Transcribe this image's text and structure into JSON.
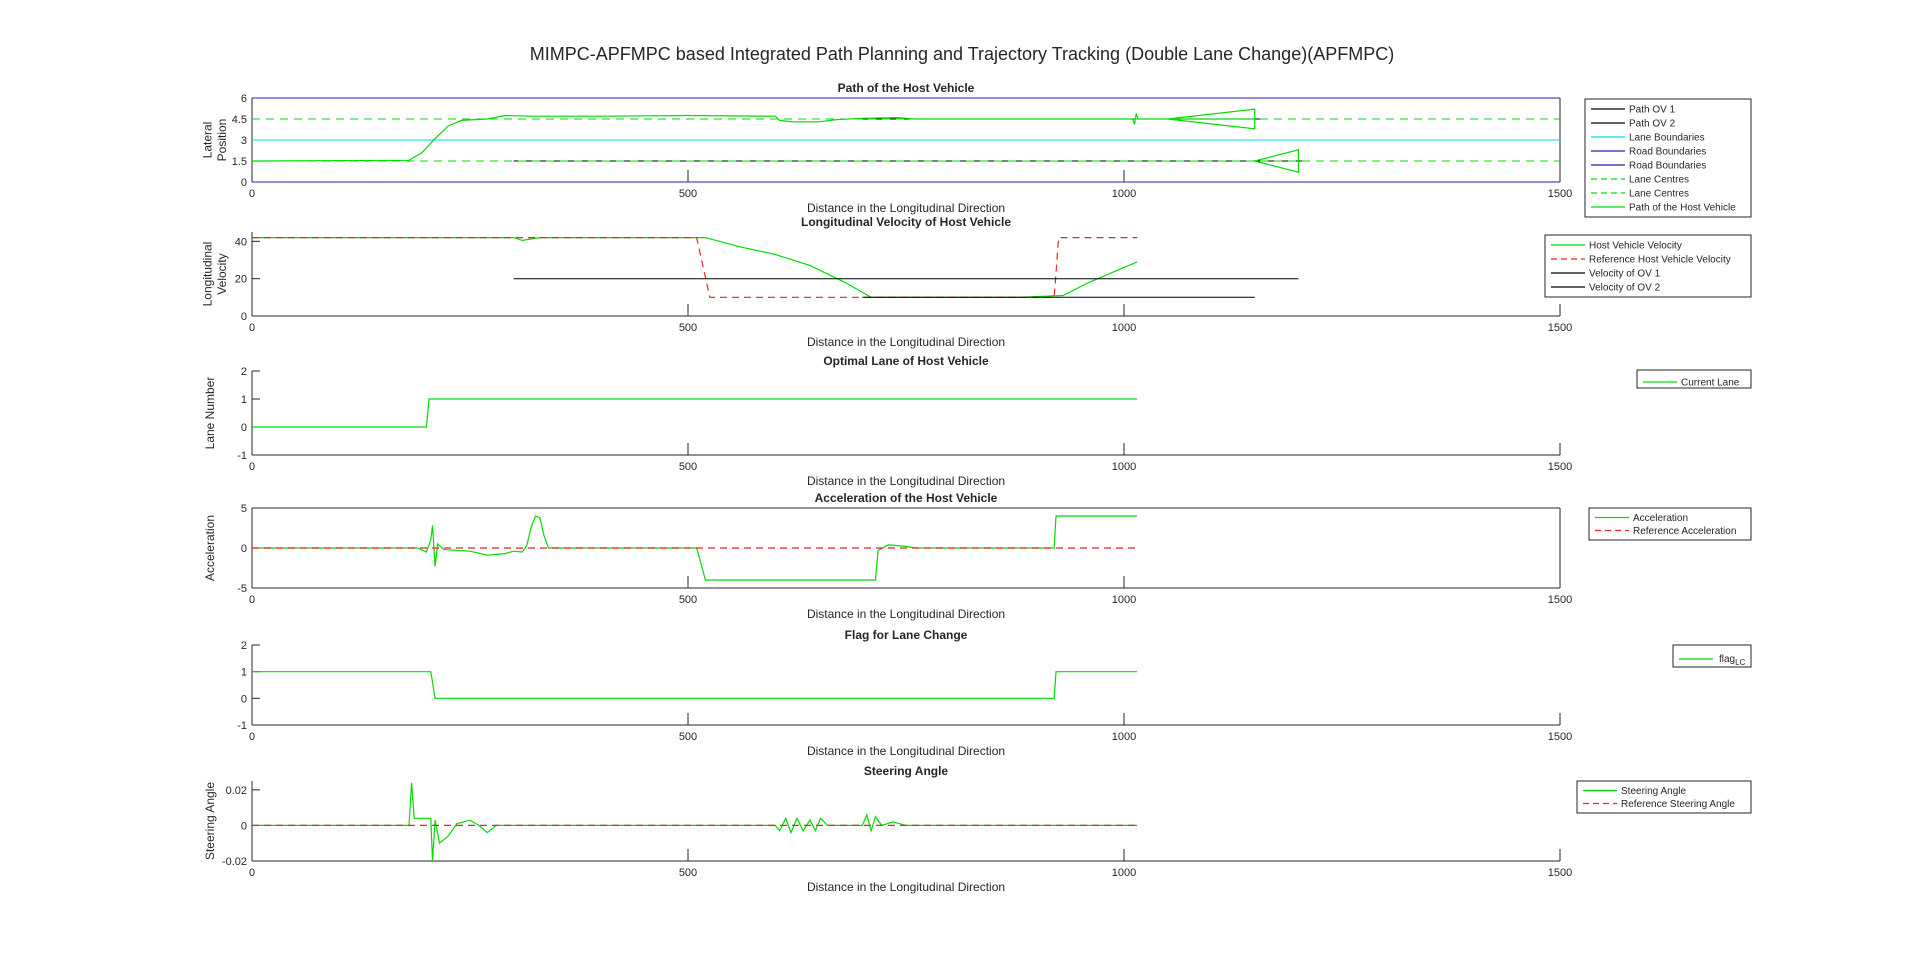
{
  "figure": {
    "title": "MIMPC-APFMPC based Integrated Path Planning and Trajectory Tracking (Double Lane Change)(APFMPC)"
  },
  "colors": {
    "host": "#00dd00",
    "reference": "#ee2222",
    "other_vehicle": "#000000",
    "lane_boundary": "#00dddd",
    "road_boundary": "#2222bb",
    "lane_centre": "#00dd00",
    "axis": "#262626"
  },
  "chart_data": [
    {
      "id": "path",
      "type": "line",
      "title": "Path of the Host Vehicle",
      "xlabel": "Distance in the Longitudinal Direction",
      "ylabel": "Lateral Position",
      "xlim": [
        0,
        1500
      ],
      "ylim": [
        0,
        6
      ],
      "xticks": [
        0,
        500,
        1000,
        1500
      ],
      "yticks": [
        0,
        1.5,
        3,
        4.5,
        6
      ],
      "ytick_labels": [
        "0",
        "1.5",
        "3",
        "4.5",
        "6"
      ],
      "legend_position": "right",
      "legend": [
        "Path OV 1",
        "Path OV 2",
        "Lane Boundaries",
        "Road Boundaries",
        "Road Boundaries",
        "Lane Centres",
        "Lane Centres",
        "Path of the Host Vehicle"
      ],
      "series": [
        {
          "name": "Path OV 1",
          "style": "ov",
          "points": [
            [
              700,
              4.5
            ],
            [
              1160,
              4.5
            ]
          ]
        },
        {
          "name": "Path OV 2",
          "style": "ov",
          "points": [
            [
              300,
              1.5
            ],
            [
              1210,
              1.5
            ]
          ]
        },
        {
          "name": "Lane Boundaries",
          "style": "lane_boundary",
          "points": [
            [
              0,
              3
            ],
            [
              1500,
              3
            ]
          ]
        },
        {
          "name": "Road Boundaries",
          "style": "road_boundary",
          "points": [
            [
              0,
              6
            ],
            [
              1500,
              6
            ]
          ]
        },
        {
          "name": "Road Boundaries",
          "style": "road_boundary",
          "points": [
            [
              0,
              0
            ],
            [
              1500,
              0
            ]
          ]
        },
        {
          "name": "Lane Centres",
          "style": "lane_centre",
          "points": [
            [
              0,
              4.5
            ],
            [
              1500,
              4.5
            ]
          ]
        },
        {
          "name": "Lane Centres",
          "style": "lane_centre",
          "points": [
            [
              0,
              1.5
            ],
            [
              1500,
              1.5
            ]
          ]
        },
        {
          "name": "Path of the Host Vehicle",
          "style": "host",
          "points": [
            [
              0,
              1.5
            ],
            [
              180,
              1.55
            ],
            [
              195,
              2.1
            ],
            [
              210,
              3.1
            ],
            [
              225,
              4.0
            ],
            [
              240,
              4.4
            ],
            [
              270,
              4.5
            ],
            [
              290,
              4.75
            ],
            [
              320,
              4.7
            ],
            [
              400,
              4.7
            ],
            [
              500,
              4.75
            ],
            [
              600,
              4.7
            ],
            [
              605,
              4.4
            ],
            [
              620,
              4.3
            ],
            [
              650,
              4.3
            ],
            [
              670,
              4.45
            ],
            [
              700,
              4.55
            ],
            [
              740,
              4.6
            ],
            [
              760,
              4.5
            ],
            [
              1010,
              4.5
            ],
            [
              1012,
              4.1
            ],
            [
              1014,
              4.9
            ],
            [
              1016,
              4.5
            ],
            [
              1050,
              4.5
            ],
            [
              1150,
              5.2
            ],
            [
              1150,
              3.8
            ],
            [
              1050,
              4.5
            ],
            [
              1150,
              4.5
            ]
          ]
        },
        {
          "name": "OV 2 marker",
          "style": "host",
          "points": [
            [
              1150,
              1.5
            ],
            [
              1200,
              2.3
            ],
            [
              1200,
              0.7
            ],
            [
              1150,
              1.5
            ]
          ]
        }
      ]
    },
    {
      "id": "velocity",
      "type": "line",
      "title": "Longitudinal Velocity of Host Vehicle",
      "xlabel": "Distance in the Longitudinal Direction",
      "ylabel": "Longitudinal Velocity",
      "xlim": [
        0,
        1500
      ],
      "ylim": [
        0,
        45
      ],
      "xticks": [
        0,
        500,
        1000,
        1500
      ],
      "yticks": [
        0,
        20,
        40
      ],
      "ytick_labels": [
        "0",
        "20",
        "40"
      ],
      "legend_position": "right",
      "legend": [
        "Host Vehicle Velocity",
        "Reference Host Vehicle Velocity",
        "Velocity of OV 1",
        "Velocity of OV 2"
      ],
      "series": [
        {
          "name": "Host Vehicle Velocity",
          "style": "host",
          "points": [
            [
              0,
              42
            ],
            [
              300,
              42
            ],
            [
              310,
              40.5
            ],
            [
              330,
              42
            ],
            [
              520,
              42
            ],
            [
              560,
              37
            ],
            [
              600,
              33
            ],
            [
              640,
              27
            ],
            [
              680,
              18
            ],
            [
              710,
              10
            ],
            [
              760,
              10
            ],
            [
              880,
              10
            ],
            [
              930,
              11
            ],
            [
              960,
              18
            ],
            [
              990,
              24
            ],
            [
              1015,
              29
            ]
          ]
        },
        {
          "name": "Reference Host Vehicle Velocity",
          "style": "reference",
          "points": [
            [
              0,
              42
            ],
            [
              510,
              42
            ],
            [
              525,
              10
            ],
            [
              920,
              10
            ],
            [
              925,
              42
            ],
            [
              1015,
              42
            ]
          ]
        },
        {
          "name": "Velocity of OV 1",
          "style": "ov",
          "points": [
            [
              300,
              20
            ],
            [
              1200,
              20
            ]
          ]
        },
        {
          "name": "Velocity of OV 2",
          "style": "ov",
          "points": [
            [
              700,
              10
            ],
            [
              1150,
              10
            ]
          ]
        }
      ]
    },
    {
      "id": "lane",
      "type": "line",
      "title": "Optimal Lane of Host Vehicle",
      "xlabel": "Distance in the Longitudinal Direction",
      "ylabel": "Lane Number",
      "xlim": [
        0,
        1500
      ],
      "ylim": [
        -1,
        2
      ],
      "xticks": [
        0,
        500,
        1000,
        1500
      ],
      "yticks": [
        -1,
        0,
        1,
        2
      ],
      "ytick_labels": [
        "-1",
        "0",
        "1",
        "2"
      ],
      "legend_position": "right",
      "legend": [
        "Current Lane"
      ],
      "series": [
        {
          "name": "Current Lane",
          "style": "host",
          "points": [
            [
              0,
              0
            ],
            [
              200,
              0
            ],
            [
              203,
              1
            ],
            [
              1015,
              1
            ]
          ]
        }
      ]
    },
    {
      "id": "accel",
      "type": "line",
      "title": "Acceleration of the Host Vehicle",
      "xlabel": "Distance in the Longitudinal Direction",
      "ylabel": "Acceleration",
      "xlim": [
        0,
        1500
      ],
      "ylim": [
        -5,
        5
      ],
      "xticks": [
        0,
        500,
        1000,
        1500
      ],
      "yticks": [
        -5,
        0,
        5
      ],
      "ytick_labels": [
        "-5",
        "0",
        "5"
      ],
      "legend_position": "right",
      "legend": [
        "Acceleration",
        "Reference Acceleration"
      ],
      "series": [
        {
          "name": "Acceleration",
          "style": "host",
          "points": [
            [
              0,
              0
            ],
            [
              190,
              0
            ],
            [
              200,
              -0.5
            ],
            [
              205,
              1
            ],
            [
              207,
              2.8
            ],
            [
              210,
              -2.3
            ],
            [
              213,
              0.5
            ],
            [
              220,
              -0.2
            ],
            [
              250,
              -0.4
            ],
            [
              270,
              -0.9
            ],
            [
              290,
              -0.7
            ],
            [
              300,
              -0.4
            ],
            [
              310,
              -0.5
            ],
            [
              315,
              0.3
            ],
            [
              320,
              2.5
            ],
            [
              325,
              4
            ],
            [
              330,
              3.8
            ],
            [
              335,
              1.5
            ],
            [
              340,
              0
            ],
            [
              510,
              0
            ],
            [
              520,
              -4
            ],
            [
              715,
              -4
            ],
            [
              718,
              -0.3
            ],
            [
              730,
              0.4
            ],
            [
              750,
              0.2
            ],
            [
              760,
              0
            ],
            [
              920,
              0
            ],
            [
              922,
              4
            ],
            [
              1015,
              4
            ]
          ]
        },
        {
          "name": "Reference Acceleration",
          "style": "reference",
          "points": [
            [
              0,
              0
            ],
            [
              1015,
              0
            ]
          ]
        }
      ]
    },
    {
      "id": "flag",
      "type": "line",
      "title": "Flag for Lane Change",
      "xlabel": "Distance in the Longitudinal Direction",
      "ylabel": "",
      "xlim": [
        0,
        1500
      ],
      "ylim": [
        -1,
        2
      ],
      "xticks": [
        0,
        500,
        1000,
        1500
      ],
      "yticks": [
        -1,
        0,
        1,
        2
      ],
      "ytick_labels": [
        "-1",
        "0",
        "1",
        "2"
      ],
      "legend_position": "right",
      "legend": [
        "flag_LC"
      ],
      "series": [
        {
          "name": "flag_LC",
          "style": "host",
          "points": [
            [
              0,
              1
            ],
            [
              205,
              1
            ],
            [
              210,
              0
            ],
            [
              920,
              0
            ],
            [
              922,
              1
            ],
            [
              1015,
              1
            ]
          ]
        }
      ]
    },
    {
      "id": "steer",
      "type": "line",
      "title": "Steering Angle",
      "xlabel": "Distance in the Longitudinal Direction",
      "ylabel": "Steering Angle",
      "xlim": [
        0,
        1500
      ],
      "ylim": [
        -0.02,
        0.025
      ],
      "xticks": [
        0,
        500,
        1000,
        1500
      ],
      "yticks": [
        -0.02,
        0,
        0.02
      ],
      "ytick_labels": [
        "-0.02",
        "0",
        "0.02"
      ],
      "legend_position": "right",
      "legend": [
        "Steering Angle",
        "Reference Steering Angle"
      ],
      "series": [
        {
          "name": "Steering Angle",
          "style": "host",
          "points": [
            [
              0,
              0
            ],
            [
              180,
              0
            ],
            [
              183,
              0.024
            ],
            [
              186,
              0.004
            ],
            [
              205,
              0.004
            ],
            [
              207,
              -0.02
            ],
            [
              210,
              0.003
            ],
            [
              215,
              -0.01
            ],
            [
              225,
              -0.006
            ],
            [
              235,
              0.001
            ],
            [
              250,
              0.003
            ],
            [
              260,
              0
            ],
            [
              270,
              -0.004
            ],
            [
              280,
              0
            ],
            [
              600,
              0
            ],
            [
              605,
              -0.003
            ],
            [
              612,
              0.004
            ],
            [
              618,
              -0.004
            ],
            [
              625,
              0.004
            ],
            [
              632,
              -0.003
            ],
            [
              640,
              0.003
            ],
            [
              646,
              -0.003
            ],
            [
              652,
              0.004
            ],
            [
              660,
              0
            ],
            [
              700,
              0
            ],
            [
              705,
              0.006
            ],
            [
              710,
              -0.003
            ],
            [
              715,
              0.005
            ],
            [
              722,
              0
            ],
            [
              735,
              0.002
            ],
            [
              750,
              0
            ],
            [
              1015,
              0
            ]
          ]
        },
        {
          "name": "Reference Steering Angle",
          "style": "reference",
          "points": [
            [
              0,
              0
            ],
            [
              1015,
              0
            ]
          ]
        }
      ]
    }
  ]
}
